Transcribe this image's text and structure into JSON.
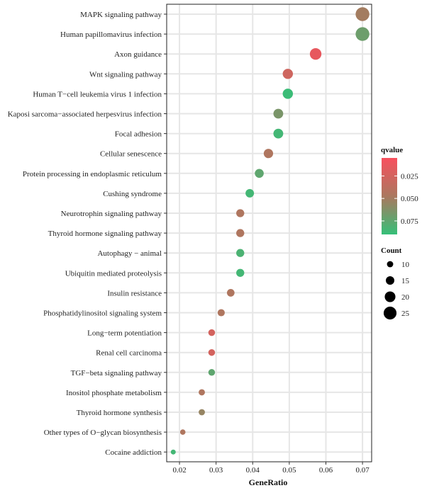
{
  "chart_data": {
    "type": "scatter",
    "title": "",
    "xlabel": "GeneRatio",
    "ylabel": "",
    "xlim": [
      0.0165,
      0.0725
    ],
    "x_ticks": [
      "0.02",
      "0.03",
      "0.04",
      "0.05",
      "0.06",
      "0.07"
    ],
    "x_tick_values": [
      0.02,
      0.03,
      0.04,
      0.05,
      0.06,
      0.07
    ],
    "grid": true,
    "legend_position": "right",
    "color_legend": {
      "title": "qvalue",
      "ticks": [
        "0.025",
        "0.050",
        "0.075"
      ],
      "tick_values": [
        0.025,
        0.05,
        0.075
      ],
      "range": [
        0.005,
        0.09
      ],
      "low_color": "#f8505e",
      "high_color": "#36bf78"
    },
    "size_legend": {
      "title": "Count",
      "values": [
        10,
        15,
        20,
        25
      ],
      "labels": [
        "10",
        "15",
        "20",
        "25"
      ]
    },
    "points": [
      {
        "term": "MAPK signaling pathway",
        "gene_ratio": 0.07,
        "qvalue": 0.05,
        "count": 27
      },
      {
        "term": "Human papillomavirus infection",
        "gene_ratio": 0.07,
        "qvalue": 0.07,
        "count": 27
      },
      {
        "term": "Axon guidance",
        "gene_ratio": 0.0572,
        "qvalue": 0.014,
        "count": 22
      },
      {
        "term": "Wnt signaling pathway",
        "gene_ratio": 0.0496,
        "qvalue": 0.028,
        "count": 19
      },
      {
        "term": "Human T−cell leukemia virus 1 infection",
        "gene_ratio": 0.0496,
        "qvalue": 0.088,
        "count": 19
      },
      {
        "term": "Kaposi sarcoma−associated herpesvirus infection",
        "gene_ratio": 0.047,
        "qvalue": 0.065,
        "count": 18
      },
      {
        "term": "Focal adhesion",
        "gene_ratio": 0.047,
        "qvalue": 0.085,
        "count": 18
      },
      {
        "term": "Cellular senescence",
        "gene_ratio": 0.0443,
        "qvalue": 0.045,
        "count": 17
      },
      {
        "term": "Protein processing in endoplasmic reticulum",
        "gene_ratio": 0.0418,
        "qvalue": 0.075,
        "count": 16
      },
      {
        "term": "Cushing syndrome",
        "gene_ratio": 0.0392,
        "qvalue": 0.085,
        "count": 15
      },
      {
        "term": "Neurotrophin signaling pathway",
        "gene_ratio": 0.0366,
        "qvalue": 0.045,
        "count": 14
      },
      {
        "term": "Thyroid hormone signaling pathway",
        "gene_ratio": 0.0366,
        "qvalue": 0.045,
        "count": 14
      },
      {
        "term": "Autophagy − animal",
        "gene_ratio": 0.0366,
        "qvalue": 0.082,
        "count": 14
      },
      {
        "term": "Ubiquitin mediated proteolysis",
        "gene_ratio": 0.0366,
        "qvalue": 0.085,
        "count": 14
      },
      {
        "term": "Insulin resistance",
        "gene_ratio": 0.034,
        "qvalue": 0.045,
        "count": 13
      },
      {
        "term": "Phosphatidylinositol signaling system",
        "gene_ratio": 0.0314,
        "qvalue": 0.045,
        "count": 12
      },
      {
        "term": "Long−term potentiation",
        "gene_ratio": 0.0288,
        "qvalue": 0.025,
        "count": 11
      },
      {
        "term": "Renal cell carcinoma",
        "gene_ratio": 0.0288,
        "qvalue": 0.025,
        "count": 11
      },
      {
        "term": "TGF−beta signaling pathway",
        "gene_ratio": 0.0288,
        "qvalue": 0.075,
        "count": 11
      },
      {
        "term": "Inositol phosphate metabolism",
        "gene_ratio": 0.0261,
        "qvalue": 0.045,
        "count": 10
      },
      {
        "term": "Thyroid hormone synthesis",
        "gene_ratio": 0.0261,
        "qvalue": 0.055,
        "count": 10
      },
      {
        "term": "Other types of O−glycan biosynthesis",
        "gene_ratio": 0.0209,
        "qvalue": 0.045,
        "count": 8
      },
      {
        "term": "Cocaine addiction",
        "gene_ratio": 0.0183,
        "qvalue": 0.085,
        "count": 7
      }
    ]
  }
}
